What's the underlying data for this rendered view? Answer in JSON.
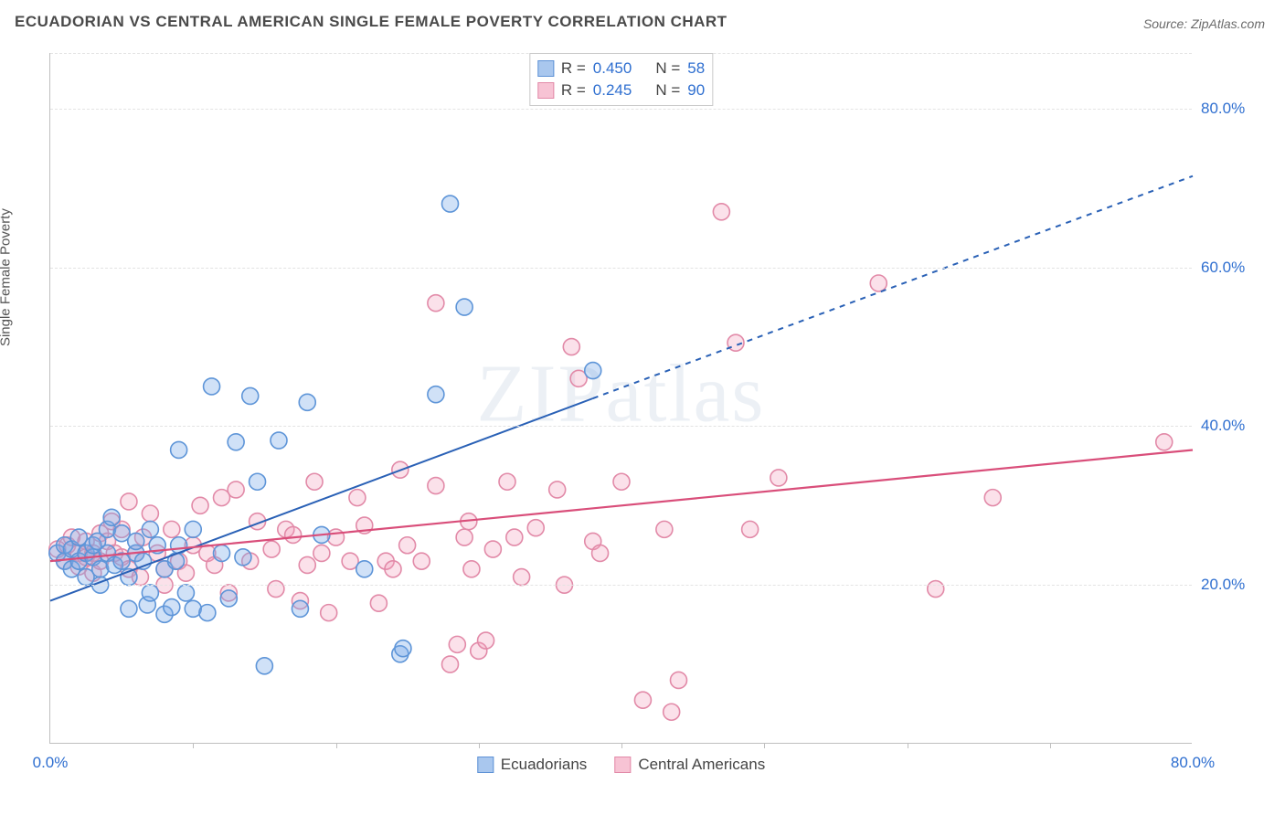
{
  "title": "ECUADORIAN VS CENTRAL AMERICAN SINGLE FEMALE POVERTY CORRELATION CHART",
  "source": "Source: ZipAtlas.com",
  "watermark": "ZIPatlas",
  "y_axis_label": "Single Female Poverty",
  "chart": {
    "type": "scatter",
    "xlim": [
      0,
      80
    ],
    "ylim": [
      0,
      87
    ],
    "x_ticks_label": {
      "0": "0.0%",
      "80": "80.0%"
    },
    "x_ticks_minor": [
      10,
      20,
      30,
      40,
      50,
      60,
      70
    ],
    "y_ticks": {
      "20": "20.0%",
      "40": "40.0%",
      "60": "60.0%",
      "80": "80.0%"
    },
    "y_grid_extra": [
      87
    ],
    "background_color": "#ffffff",
    "grid_color": "#e3e3e3",
    "axis_color": "#bfbfbf",
    "tick_label_color": "#2f6fd0",
    "marker_radius": 9,
    "marker_stroke_width": 1.6,
    "series": [
      {
        "name": "Ecuadorians",
        "color_fill": "rgba(120,169,233,0.35)",
        "color_stroke": "#5e95d8",
        "swatch_fill": "#a9c7ee",
        "swatch_stroke": "#5e92d6",
        "R": "0.450",
        "N": "58",
        "trend": {
          "x1": 0,
          "y1": 18,
          "x2_solid": 38,
          "y2_solid": 43.5,
          "x2_dash": 80,
          "y2_dash": 71.5,
          "color": "#2a61b6",
          "width": 2.0,
          "dash": "6 6"
        },
        "points": [
          [
            0.5,
            24
          ],
          [
            1,
            23
          ],
          [
            1,
            25
          ],
          [
            1.5,
            22
          ],
          [
            1.5,
            24.5
          ],
          [
            2,
            23
          ],
          [
            2,
            26
          ],
          [
            2.5,
            21
          ],
          [
            2.5,
            24
          ],
          [
            3,
            23.5
          ],
          [
            3,
            25
          ],
          [
            3.3,
            25.5
          ],
          [
            3.5,
            20
          ],
          [
            3.5,
            22
          ],
          [
            4,
            27
          ],
          [
            4,
            24
          ],
          [
            4.3,
            28.5
          ],
          [
            4.5,
            22.5
          ],
          [
            5,
            23
          ],
          [
            5,
            26.5
          ],
          [
            5.5,
            21
          ],
          [
            5.5,
            17
          ],
          [
            6,
            24
          ],
          [
            6,
            25.5
          ],
          [
            6.5,
            23
          ],
          [
            6.8,
            17.5
          ],
          [
            7,
            19
          ],
          [
            7,
            27
          ],
          [
            7.5,
            25
          ],
          [
            8,
            22
          ],
          [
            8,
            16.3
          ],
          [
            8.5,
            17.2
          ],
          [
            8.8,
            23
          ],
          [
            9,
            37
          ],
          [
            9,
            25
          ],
          [
            9.5,
            19
          ],
          [
            10,
            17
          ],
          [
            10,
            27
          ],
          [
            11,
            16.5
          ],
          [
            11.3,
            45
          ],
          [
            12,
            24
          ],
          [
            12.5,
            18.3
          ],
          [
            13,
            38
          ],
          [
            13.5,
            23.5
          ],
          [
            14,
            43.8
          ],
          [
            14.5,
            33
          ],
          [
            15,
            9.8
          ],
          [
            16,
            38.2
          ],
          [
            17.5,
            17
          ],
          [
            18,
            43
          ],
          [
            19,
            26.3
          ],
          [
            22,
            22
          ],
          [
            24.5,
            11.3
          ],
          [
            24.7,
            12
          ],
          [
            27,
            44
          ],
          [
            28,
            68
          ],
          [
            29,
            55
          ],
          [
            38,
            47
          ]
        ]
      },
      {
        "name": "Central Americans",
        "color_fill": "rgba(241,157,185,0.30)",
        "color_stroke": "#e28aa8",
        "swatch_fill": "#f7c3d4",
        "swatch_stroke": "#e28aa8",
        "R": "0.245",
        "N": "90",
        "trend": {
          "x1": 0,
          "y1": 23,
          "x2_solid": 80,
          "y2_solid": 37,
          "x2_dash": 80,
          "y2_dash": 37,
          "color": "#d94e7a",
          "width": 2.2,
          "dash": ""
        },
        "points": [
          [
            0.5,
            24.5
          ],
          [
            1,
            23
          ],
          [
            1.2,
            25
          ],
          [
            1.5,
            26
          ],
          [
            2,
            24
          ],
          [
            2,
            22.3
          ],
          [
            2.5,
            25.5
          ],
          [
            2.5,
            23.5
          ],
          [
            3,
            24
          ],
          [
            3,
            21.5
          ],
          [
            3.5,
            23
          ],
          [
            3.5,
            26.5
          ],
          [
            4,
            25.5
          ],
          [
            4.3,
            28
          ],
          [
            4.5,
            24
          ],
          [
            5,
            23.5
          ],
          [
            5,
            27
          ],
          [
            5.5,
            22
          ],
          [
            5.5,
            30.5
          ],
          [
            6,
            24
          ],
          [
            6.3,
            21
          ],
          [
            6.5,
            26
          ],
          [
            7,
            29
          ],
          [
            7.5,
            24
          ],
          [
            8,
            22
          ],
          [
            8,
            20
          ],
          [
            8.5,
            27
          ],
          [
            9,
            23
          ],
          [
            9.5,
            21.5
          ],
          [
            10,
            25
          ],
          [
            10.5,
            30
          ],
          [
            11,
            24
          ],
          [
            11.5,
            22.5
          ],
          [
            12,
            31
          ],
          [
            12.5,
            19
          ],
          [
            13,
            32
          ],
          [
            14,
            23
          ],
          [
            14.5,
            28
          ],
          [
            15.5,
            24.5
          ],
          [
            15.8,
            19.5
          ],
          [
            16.5,
            27
          ],
          [
            17,
            26.3
          ],
          [
            17.5,
            18
          ],
          [
            18,
            22.5
          ],
          [
            18.5,
            33
          ],
          [
            19,
            24
          ],
          [
            19.5,
            16.5
          ],
          [
            20,
            26
          ],
          [
            21,
            23
          ],
          [
            21.5,
            31
          ],
          [
            22,
            27.5
          ],
          [
            23,
            17.7
          ],
          [
            23.5,
            23
          ],
          [
            24,
            22
          ],
          [
            24.5,
            34.5
          ],
          [
            25,
            25
          ],
          [
            26,
            23
          ],
          [
            27,
            32.5
          ],
          [
            28,
            10
          ],
          [
            28.5,
            12.5
          ],
          [
            29,
            26
          ],
          [
            29.3,
            28
          ],
          [
            29.5,
            22
          ],
          [
            30,
            11.7
          ],
          [
            30.5,
            13
          ],
          [
            31,
            24.5
          ],
          [
            32,
            33
          ],
          [
            32.5,
            26
          ],
          [
            33,
            21
          ],
          [
            34,
            27.2
          ],
          [
            35.5,
            32
          ],
          [
            36,
            20
          ],
          [
            36.5,
            50
          ],
          [
            37,
            46
          ],
          [
            38,
            25.5
          ],
          [
            38.5,
            24
          ],
          [
            40,
            33
          ],
          [
            41.5,
            5.5
          ],
          [
            43,
            27
          ],
          [
            43.5,
            4
          ],
          [
            44,
            8
          ],
          [
            47,
            67
          ],
          [
            48,
            50.5
          ],
          [
            49,
            27
          ],
          [
            51,
            33.5
          ],
          [
            58,
            58
          ],
          [
            62,
            19.5
          ],
          [
            66,
            31
          ],
          [
            78,
            38
          ],
          [
            27,
            55.5
          ]
        ]
      }
    ]
  },
  "legend_top": {
    "R_label": "R =",
    "N_label": "N ="
  },
  "legend_bottom": [
    {
      "label": "Ecuadorians",
      "fill": "#a9c7ee",
      "stroke": "#5e92d6"
    },
    {
      "label": "Central Americans",
      "fill": "#f7c3d4",
      "stroke": "#e28aa8"
    }
  ]
}
